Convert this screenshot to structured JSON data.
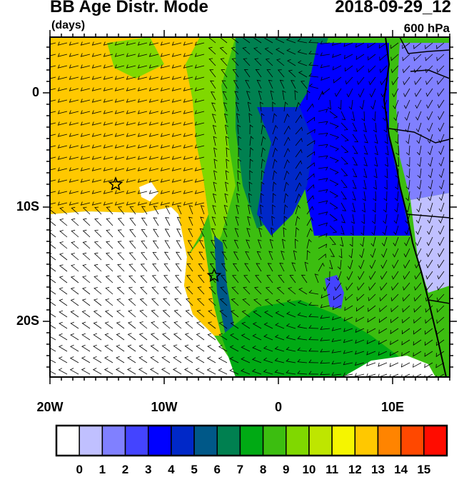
{
  "header": {
    "title": "BB Age Distr. Mode",
    "units": "(days)",
    "datetime": "2018-09-29_12",
    "level": "600 hPa"
  },
  "axes": {
    "lat_labels": [
      "0",
      "10S",
      "20S"
    ],
    "lon_labels": [
      "20W",
      "10W",
      "0",
      "10E"
    ],
    "lon_range": [
      "20W",
      "15E"
    ],
    "lat_range": [
      "5N",
      "25S"
    ]
  },
  "colorbar": {
    "labels": [
      "0",
      "1",
      "2",
      "3",
      "4",
      "5",
      "6",
      "7",
      "8",
      "9",
      "10",
      "11",
      "12",
      "13",
      "14",
      "15"
    ],
    "colors": [
      "#ffffff",
      "#c0c0ff",
      "#8080ff",
      "#4444ff",
      "#0000ff",
      "#0028c8",
      "#005888",
      "#008050",
      "#00aa14",
      "#3cbe10",
      "#80d800",
      "#bee600",
      "#f5f500",
      "#ffc800",
      "#ff8400",
      "#ff4800",
      "#ff0c00"
    ]
  },
  "markers": {
    "type": "star",
    "count": 2
  },
  "wind_barbs": true
}
